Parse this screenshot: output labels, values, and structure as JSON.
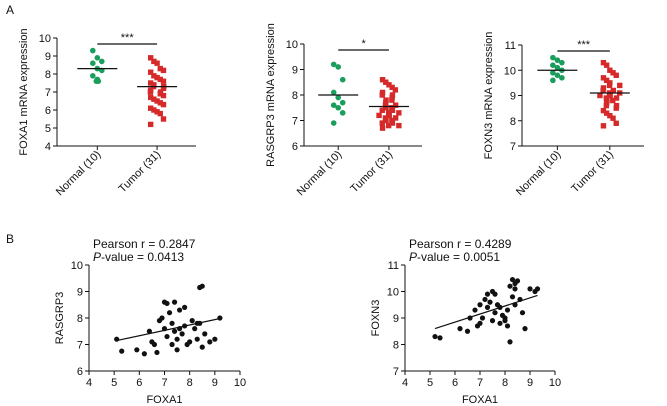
{
  "panels": {
    "a": "A",
    "b": "B"
  },
  "chart_data": [
    {
      "type": "scatter",
      "subtype": "dot-plot",
      "ylabel": "FOXA1 mRNA expression",
      "ylim": [
        4,
        10
      ],
      "yticks": [
        4,
        5,
        6,
        7,
        8,
        9,
        10
      ],
      "categories": [
        "Normal (10)",
        "Tumor (31)"
      ],
      "colors": [
        "#1a9e5c",
        "#d62a2a"
      ],
      "means": [
        8.3,
        7.3
      ],
      "significance": "***",
      "series": [
        {
          "name": "Normal (10)",
          "values": [
            9.3,
            8.9,
            8.7,
            8.6,
            8.3,
            8.2,
            7.9,
            7.7,
            7.6,
            7.6
          ]
        },
        {
          "name": "Tumor (31)",
          "values": [
            8.9,
            8.7,
            8.6,
            8.3,
            8.2,
            8.1,
            7.9,
            7.8,
            7.7,
            7.6,
            7.5,
            7.4,
            7.3,
            7.3,
            7.2,
            7.1,
            7.0,
            7.0,
            6.9,
            6.8,
            6.7,
            6.6,
            6.5,
            6.4,
            6.3,
            6.1,
            6.0,
            5.9,
            5.8,
            5.5,
            5.2
          ]
        }
      ]
    },
    {
      "type": "scatter",
      "subtype": "dot-plot",
      "ylabel": "RASGRP3 mRNA expression",
      "ylim": [
        6,
        10
      ],
      "yticks": [
        6,
        7,
        8,
        9,
        10
      ],
      "categories": [
        "Normal (10)",
        "Tumor (31)"
      ],
      "colors": [
        "#1a9e5c",
        "#d62a2a"
      ],
      "means": [
        8.0,
        7.55
      ],
      "significance": "*",
      "series": [
        {
          "name": "Normal (10)",
          "values": [
            9.2,
            9.1,
            8.6,
            8.1,
            7.9,
            7.7,
            7.6,
            7.5,
            7.3,
            6.9
          ]
        },
        {
          "name": "Tumor (31)",
          "values": [
            8.6,
            8.5,
            8.4,
            8.3,
            8.2,
            8.1,
            8.0,
            8.0,
            7.9,
            7.8,
            7.8,
            7.7,
            7.6,
            7.6,
            7.5,
            7.5,
            7.4,
            7.4,
            7.3,
            7.3,
            7.2,
            7.2,
            7.1,
            7.1,
            7.0,
            7.0,
            6.9,
            6.9,
            6.8,
            6.8,
            6.7
          ]
        }
      ]
    },
    {
      "type": "scatter",
      "subtype": "dot-plot",
      "ylabel": "FOXN3 mRNA expression",
      "ylim": [
        7,
        11
      ],
      "yticks": [
        7,
        8,
        9,
        10,
        11
      ],
      "categories": [
        "Normal (10)",
        "Tumor (31)"
      ],
      "colors": [
        "#1a9e5c",
        "#d62a2a"
      ],
      "means": [
        10.0,
        9.1
      ],
      "significance": "***",
      "series": [
        {
          "name": "Normal (10)",
          "values": [
            10.5,
            10.4,
            10.3,
            10.2,
            10.1,
            10.0,
            9.9,
            9.8,
            9.7,
            9.6
          ]
        },
        {
          "name": "Tumor (31)",
          "values": [
            10.3,
            10.2,
            10.0,
            9.9,
            9.8,
            9.7,
            9.6,
            9.5,
            9.4,
            9.4,
            9.3,
            9.2,
            9.2,
            9.1,
            9.1,
            9.0,
            9.0,
            8.9,
            8.9,
            8.8,
            8.8,
            8.7,
            8.6,
            8.6,
            8.5,
            8.4,
            8.3,
            8.2,
            8.1,
            7.9,
            7.8
          ]
        }
      ]
    },
    {
      "type": "scatter",
      "xlabel": "FOXA1",
      "ylabel": "RASGRP3",
      "xlim": [
        4,
        10
      ],
      "ylim": [
        6,
        10
      ],
      "xticks": [
        4,
        5,
        6,
        7,
        8,
        9,
        10
      ],
      "yticks": [
        6,
        7,
        8,
        9,
        10
      ],
      "annotation": {
        "pearson": "Pearson r = 0.2847",
        "p_label": "P",
        "p_value": "-value = 0.0413"
      },
      "fit": [
        [
          5.1,
          7.15
        ],
        [
          9.3,
          8.0
        ]
      ],
      "x": [
        5.1,
        5.3,
        5.9,
        6.2,
        6.4,
        6.5,
        6.6,
        6.7,
        6.8,
        6.9,
        7.0,
        7.0,
        7.1,
        7.1,
        7.2,
        7.3,
        7.3,
        7.4,
        7.4,
        7.5,
        7.5,
        7.6,
        7.6,
        7.7,
        7.8,
        7.9,
        8.0,
        8.1,
        8.2,
        8.3,
        8.3,
        8.4,
        8.5,
        8.6,
        8.8,
        9.0,
        9.2,
        8.4,
        8.5,
        7.8
      ],
      "y": [
        7.2,
        6.75,
        6.8,
        6.65,
        7.5,
        7.1,
        7.0,
        6.7,
        7.9,
        8.0,
        8.6,
        7.6,
        7.3,
        8.55,
        8.2,
        7.0,
        7.8,
        7.5,
        8.6,
        6.8,
        7.2,
        7.6,
        8.3,
        7.4,
        7.7,
        7.0,
        7.1,
        7.9,
        7.6,
        7.2,
        7.8,
        9.15,
        9.2,
        7.4,
        7.1,
        7.2,
        8.0,
        7.8,
        6.9,
        8.4
      ]
    },
    {
      "type": "scatter",
      "xlabel": "FOXA1",
      "ylabel": "FOXN3",
      "xlim": [
        4,
        10
      ],
      "ylim": [
        7,
        11
      ],
      "xticks": [
        4,
        5,
        6,
        7,
        8,
        9,
        10
      ],
      "yticks": [
        7,
        8,
        9,
        10,
        11
      ],
      "annotation": {
        "pearson": "Pearson r = 0.4289",
        "p_label": "P",
        "p_value": "-value = 0.0051"
      },
      "fit": [
        [
          5.2,
          8.6
        ],
        [
          9.3,
          9.85
        ]
      ],
      "x": [
        5.2,
        5.4,
        6.2,
        6.5,
        6.6,
        6.8,
        6.9,
        7.0,
        7.0,
        7.1,
        7.2,
        7.3,
        7.3,
        7.4,
        7.5,
        7.5,
        7.6,
        7.7,
        7.8,
        7.9,
        8.0,
        8.1,
        8.1,
        8.2,
        8.3,
        8.3,
        8.4,
        8.4,
        8.5,
        8.6,
        8.7,
        8.8,
        9.0,
        9.2,
        9.3,
        7.6,
        7.8,
        8.0,
        8.2,
        8.4
      ],
      "y": [
        8.3,
        8.25,
        8.6,
        8.5,
        9.0,
        9.3,
        8.7,
        9.5,
        8.8,
        9.0,
        9.7,
        9.4,
        9.9,
        9.6,
        8.9,
        10.0,
        9.2,
        9.5,
        8.8,
        9.1,
        9.0,
        8.7,
        9.3,
        10.2,
        10.45,
        9.8,
        10.1,
        9.5,
        10.4,
        9.7,
        9.2,
        8.6,
        10.1,
        10.0,
        10.1,
        9.9,
        9.4,
        8.9,
        8.1,
        10.3
      ]
    }
  ]
}
